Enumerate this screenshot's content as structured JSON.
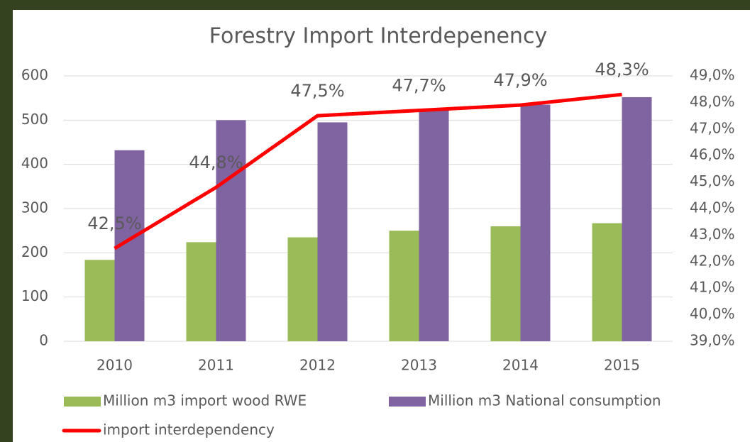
{
  "chart_data": {
    "type": "bar",
    "title": "Forestry Import Interdepenency",
    "categories": [
      "2010",
      "2011",
      "2012",
      "2013",
      "2014",
      "2015"
    ],
    "series": [
      {
        "name": "Million m3 import wood RWE",
        "color": "#9bbb59",
        "type": "bar",
        "values": [
          184,
          224,
          235,
          250,
          260,
          267
        ]
      },
      {
        "name": "Million m3 National consumption",
        "color": "#8064a2",
        "type": "bar",
        "values": [
          432,
          500,
          495,
          525,
          535,
          552
        ]
      },
      {
        "name": "import interdependency",
        "color": "#ff0000",
        "type": "line",
        "axis": "y2",
        "values": [
          42.5,
          44.8,
          47.5,
          47.7,
          47.9,
          48.3
        ],
        "value_labels": [
          "42,5%",
          "44,8%",
          "47,5%",
          "47,7%",
          "47,9%",
          "48,3%"
        ]
      }
    ],
    "ylim": [
      0,
      600
    ],
    "yticks": [
      0,
      100,
      200,
      300,
      400,
      500,
      600
    ],
    "y2lim": [
      39,
      49
    ],
    "y2ticks": [
      {
        "value": 39,
        "label": "39,0%"
      },
      {
        "value": 40,
        "label": "40,0%"
      },
      {
        "value": 41,
        "label": "41,0%"
      },
      {
        "value": 42,
        "label": "42,0%"
      },
      {
        "value": 43,
        "label": "43,0%"
      },
      {
        "value": 44,
        "label": "44,0%"
      },
      {
        "value": 45,
        "label": "45,0%"
      },
      {
        "value": 46,
        "label": "46,0%"
      },
      {
        "value": 47,
        "label": "47,0%"
      },
      {
        "value": 48,
        "label": "48,0%"
      },
      {
        "value": 49,
        "label": "49,0%"
      }
    ],
    "grid": true
  }
}
